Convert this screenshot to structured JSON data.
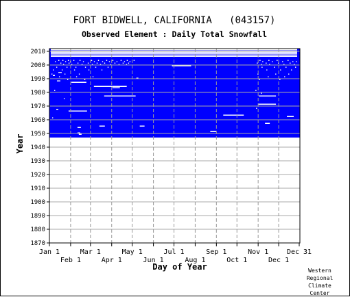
{
  "chart_data": {
    "type": "heatmap",
    "title": "FORT BIDWELL, CALIFORNIA   (043157)",
    "subtitle": "Observed Element : Daily Total Snowfall",
    "xlabel": "Day of Year",
    "ylabel": "Year",
    "xlim": [
      1,
      366
    ],
    "ylim": [
      1870,
      2012
    ],
    "grid": true,
    "x_ticks_top_row": [
      {
        "label": "Jan 1",
        "day": 1
      },
      {
        "label": "Mar 1",
        "day": 61
      },
      {
        "label": "May 1",
        "day": 122
      },
      {
        "label": "Jul 1",
        "day": 183
      },
      {
        "label": "Sep 1",
        "day": 245
      },
      {
        "label": "Nov 1",
        "day": 306
      },
      {
        "label": "Dec 31",
        "day": 366
      }
    ],
    "x_ticks_bottom_row": [
      {
        "label": "Feb 1",
        "day": 32
      },
      {
        "label": "Apr 1",
        "day": 92
      },
      {
        "label": "Jun 1",
        "day": 153
      },
      {
        "label": "Aug 1",
        "day": 214
      },
      {
        "label": "Oct 1",
        "day": 275
      },
      {
        "label": "Dec 1",
        "day": 336
      }
    ],
    "y_ticks": [
      1870,
      1880,
      1890,
      1900,
      1910,
      1920,
      1930,
      1940,
      1950,
      1960,
      1970,
      1980,
      1990,
      2000,
      2010
    ],
    "coverage_start_year": 1947,
    "coverage_end_year": 2011,
    "coverage_color": "#0000ff",
    "missing_color": "#ffffff",
    "missing_segments": [
      {
        "year": 2010,
        "start_day": 3,
        "end_day": 362
      },
      {
        "year": 2009,
        "start_day": 3,
        "end_day": 362
      },
      {
        "year": 2008,
        "start_day": 3,
        "end_day": 362
      },
      {
        "year": 2007,
        "start_day": 3,
        "end_day": 362
      },
      {
        "year": 2006,
        "start_day": 3,
        "end_day": 362
      },
      {
        "year": 2011,
        "start_day": 3,
        "end_day": 362
      },
      {
        "year": 1999,
        "start_day": 180,
        "end_day": 207
      },
      {
        "year": 1994,
        "start_day": 14,
        "end_day": 18
      },
      {
        "year": 1992,
        "start_day": 6,
        "end_day": 8
      },
      {
        "year": 1990,
        "start_day": 128,
        "end_day": 130
      },
      {
        "year": 1988,
        "start_day": 12,
        "end_day": 16
      },
      {
        "year": 1987,
        "start_day": 33,
        "end_day": 54
      },
      {
        "year": 1984,
        "start_day": 66,
        "end_day": 92
      },
      {
        "year": 1984,
        "start_day": 93,
        "end_day": 113
      },
      {
        "year": 1983,
        "start_day": 93,
        "end_day": 103
      },
      {
        "year": 1977,
        "start_day": 81,
        "end_day": 126
      },
      {
        "year": 1977,
        "start_day": 307,
        "end_day": 331
      },
      {
        "year": 1971,
        "start_day": 306,
        "end_day": 331
      },
      {
        "year": 1967,
        "start_day": 11,
        "end_day": 13
      },
      {
        "year": 1966,
        "start_day": 29,
        "end_day": 55
      },
      {
        "year": 1963,
        "start_day": 255,
        "end_day": 284
      },
      {
        "year": 1962,
        "start_day": 348,
        "end_day": 357
      },
      {
        "year": 1957,
        "start_day": 316,
        "end_day": 322
      },
      {
        "year": 1955,
        "start_day": 74,
        "end_day": 81
      },
      {
        "year": 1955,
        "start_day": 133,
        "end_day": 139
      },
      {
        "year": 1954,
        "start_day": 42,
        "end_day": 46
      },
      {
        "year": 1951,
        "start_day": 236,
        "end_day": 244
      },
      {
        "year": 1950,
        "start_day": 42,
        "end_day": 45
      },
      {
        "year": 1949,
        "start_day": 44,
        "end_day": 47
      }
    ],
    "scattered_missing_days": [
      {
        "year": 2003,
        "days": [
          14,
          20,
          28,
          36,
          45,
          62,
          72,
          84,
          93,
          105,
          114,
          124,
          308,
          321,
          333,
          349
        ]
      },
      {
        "year": 2002,
        "days": [
          9,
          24,
          31,
          50,
          66,
          78,
          88,
          99,
          110,
          118,
          312,
          326,
          341,
          356,
          361
        ]
      },
      {
        "year": 2001,
        "days": [
          17,
          29,
          42,
          57,
          70,
          81,
          96,
          108,
          116,
          304,
          317,
          335,
          352
        ]
      },
      {
        "year": 2000,
        "days": [
          21,
          33,
          48,
          63,
          75,
          90,
          102,
          113,
          310,
          322,
          343,
          358
        ]
      },
      {
        "year": 1998,
        "days": [
          11,
          26,
          39,
          53,
          68,
          86,
          311,
          329,
          346,
          360
        ]
      },
      {
        "year": 1996,
        "days": [
          6,
          19,
          37,
          58,
          77,
          318,
          338,
          354
        ]
      },
      {
        "year": 1993,
        "days": [
          4,
          23,
          44,
          305,
          331,
          350
        ]
      },
      {
        "year": 1991,
        "days": [
          15,
          40,
          64,
          320,
          344
        ]
      },
      {
        "year": 1989,
        "days": [
          27,
          52,
          307,
          337
        ]
      },
      {
        "year": 1981,
        "days": [
          8,
          302
        ]
      },
      {
        "year": 1979,
        "days": [
          310
        ]
      },
      {
        "year": 1975,
        "days": [
          22
        ]
      },
      {
        "year": 1968,
        "days": [
          303
        ]
      },
      {
        "year": 1961,
        "days": [
          5
        ]
      }
    ]
  },
  "credit": {
    "line1": "Western",
    "line2": "Regional",
    "line3": "Climate",
    "line4": "Center"
  }
}
